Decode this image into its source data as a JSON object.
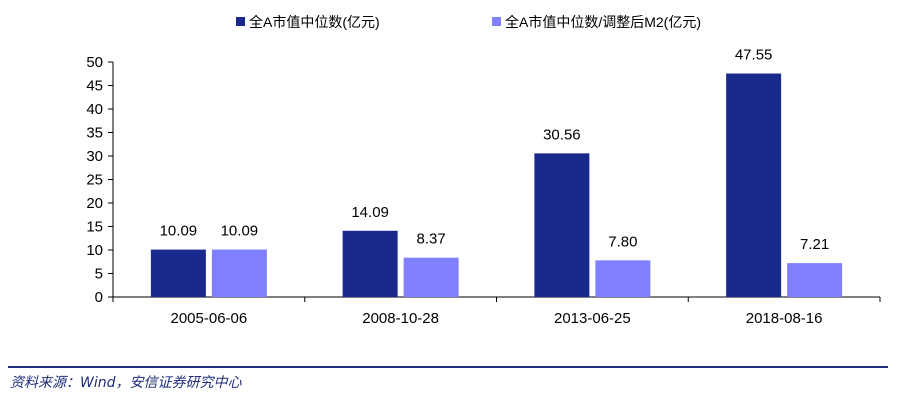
{
  "chart_data": {
    "type": "bar",
    "categories": [
      "2005-06-06",
      "2008-10-28",
      "2013-06-25",
      "2018-08-16"
    ],
    "series": [
      {
        "name": "全A市值中位数(亿元)",
        "values": [
          10.09,
          14.09,
          30.56,
          47.55
        ],
        "labels": [
          "10.09",
          "14.09",
          "30.56",
          "47.55"
        ],
        "color": "#1a2a8c"
      },
      {
        "name": "全A市值中位数/调整后M2(亿元)",
        "values": [
          10.09,
          8.37,
          7.8,
          7.21
        ],
        "labels": [
          "10.09",
          "8.37",
          "7.80",
          "7.21"
        ],
        "color": "#8080ff"
      }
    ],
    "ylim": [
      0,
      50
    ],
    "yticks": [
      0,
      5,
      10,
      15,
      20,
      25,
      30,
      35,
      40,
      45,
      50
    ],
    "legend_position": "top",
    "grid": false,
    "title": "",
    "xlabel": "",
    "ylabel": ""
  },
  "source": "资料来源：Wind，安信证券研究中心"
}
